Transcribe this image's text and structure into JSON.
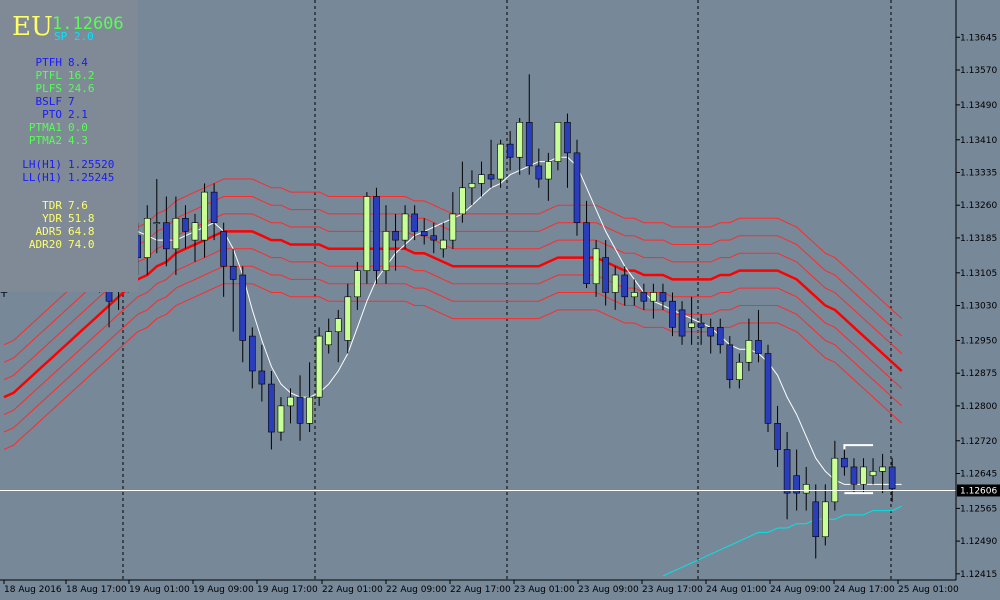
{
  "symbol": "EU",
  "bid": "1.12606",
  "spread": "SP  2.0",
  "info_rows": [
    {
      "label": "PTFH",
      "value": "8.4",
      "color": "#1a1aff"
    },
    {
      "label": "PTFL",
      "value": "16.2",
      "color": "#55ff55"
    },
    {
      "label": "PLFS",
      "value": "24.6",
      "color": "#55ff55"
    },
    {
      "label": "BSLF",
      "value": "7",
      "color": "#1a1aff"
    },
    {
      "label": "PTO",
      "value": "2.1",
      "color": "#1a1aff"
    },
    {
      "label": "PTMA1",
      "value": "0.0",
      "color": "#55ff55"
    },
    {
      "label": "PTMA2",
      "value": "4.3",
      "color": "#55ff55"
    },
    {
      "label": "LH(H1)",
      "value": "1.25520",
      "color": "#1a1aff"
    },
    {
      "label": "LL(H1)",
      "value": "1.25245",
      "color": "#1a1aff"
    },
    {
      "label": "TDR",
      "value": "7.6",
      "color": "#ffff66"
    },
    {
      "label": "YDR",
      "value": "51.8",
      "color": "#ffff66"
    },
    {
      "label": "ADR5",
      "value": "64.8",
      "color": "#ffff66"
    },
    {
      "label": "ADR20",
      "value": "74.0",
      "color": "#ffff66"
    }
  ],
  "colors": {
    "background": "#778899",
    "bull": "#c8ff96",
    "bear": "#2a3dbb",
    "wick": "#000000",
    "band": "#ff2a2a",
    "band_center": "#ff0000",
    "ma_white": "#ffffff",
    "ma_cyan": "#00e5e5",
    "price_line": "#ffffff"
  },
  "chart_data": {
    "type": "candlestick",
    "symbol": "EURUSD",
    "timeframe": "H1",
    "y_range": [
      1.1241,
      1.1368
    ],
    "y_ticks": [
      "1.13645",
      "1.13570",
      "1.13490",
      "1.13410",
      "1.13335",
      "1.13260",
      "1.13185",
      "1.13105",
      "1.13030",
      "1.12950",
      "1.12875",
      "1.12800",
      "1.12720",
      "1.12645",
      "1.12565",
      "1.12490",
      "1.12415"
    ],
    "x_labels": [
      "18 Aug 2016",
      "18 Aug 17:00",
      "19 Aug 01:00",
      "19 Aug 09:00",
      "19 Aug 17:00",
      "22 Aug 01:00",
      "22 Aug 09:00",
      "22 Aug 17:00",
      "23 Aug 01:00",
      "23 Aug 09:00",
      "23 Aug 17:00",
      "24 Aug 01:00",
      "24 Aug 09:00",
      "24 Aug 17:00",
      "25 Aug 01:00"
    ],
    "current_price": "1.12606",
    "candles": [
      {
        "o": 1.1311,
        "h": 1.1312,
        "l": 1.1305,
        "c": 1.1306
      },
      {
        "o": 1.1348,
        "h": 1.135,
        "l": 1.1344,
        "c": 1.1347
      },
      {
        "o": 1.1345,
        "h": 1.1349,
        "l": 1.1337,
        "c": 1.1339
      },
      {
        "o": 1.134,
        "h": 1.1345,
        "l": 1.1336,
        "c": 1.1338
      },
      {
        "o": 1.1338,
        "h": 1.1342,
        "l": 1.1317,
        "c": 1.1321
      },
      {
        "o": 1.1322,
        "h": 1.1331,
        "l": 1.1318,
        "c": 1.1326
      },
      {
        "o": 1.1326,
        "h": 1.1334,
        "l": 1.1322,
        "c": 1.133
      },
      {
        "o": 1.133,
        "h": 1.1338,
        "l": 1.1326,
        "c": 1.1334
      },
      {
        "o": 1.133,
        "h": 1.1342,
        "l": 1.1326,
        "c": 1.1328
      },
      {
        "o": 1.1327,
        "h": 1.1345,
        "l": 1.1323,
        "c": 1.1343
      },
      {
        "o": 1.1343,
        "h": 1.1348,
        "l": 1.1306,
        "c": 1.1308
      },
      {
        "o": 1.1314,
        "h": 1.1321,
        "l": 1.1298,
        "c": 1.1304
      },
      {
        "o": 1.1308,
        "h": 1.1318,
        "l": 1.1302,
        "c": 1.1316
      },
      {
        "o": 1.1316,
        "h": 1.1324,
        "l": 1.1306,
        "c": 1.1319
      },
      {
        "o": 1.1319,
        "h": 1.1322,
        "l": 1.131,
        "c": 1.1314
      },
      {
        "o": 1.1314,
        "h": 1.1326,
        "l": 1.131,
        "c": 1.1323
      },
      {
        "o": 1.1322,
        "h": 1.1332,
        "l": 1.1315,
        "c": 1.1322
      },
      {
        "o": 1.1322,
        "h": 1.1328,
        "l": 1.1312,
        "c": 1.1316
      },
      {
        "o": 1.1316,
        "h": 1.1328,
        "l": 1.131,
        "c": 1.1323
      },
      {
        "o": 1.1323,
        "h": 1.1326,
        "l": 1.1316,
        "c": 1.132
      },
      {
        "o": 1.1318,
        "h": 1.1324,
        "l": 1.1313,
        "c": 1.1322
      },
      {
        "o": 1.1318,
        "h": 1.1331,
        "l": 1.1314,
        "c": 1.1329
      },
      {
        "o": 1.1329,
        "h": 1.1331,
        "l": 1.1318,
        "c": 1.1322
      },
      {
        "o": 1.132,
        "h": 1.1322,
        "l": 1.1305,
        "c": 1.1312
      },
      {
        "o": 1.1312,
        "h": 1.1316,
        "l": 1.1297,
        "c": 1.1309
      },
      {
        "o": 1.131,
        "h": 1.1312,
        "l": 1.129,
        "c": 1.1295
      },
      {
        "o": 1.1296,
        "h": 1.1298,
        "l": 1.1284,
        "c": 1.1288
      },
      {
        "o": 1.1288,
        "h": 1.1294,
        "l": 1.1281,
        "c": 1.1285
      },
      {
        "o": 1.1285,
        "h": 1.1288,
        "l": 1.127,
        "c": 1.1274
      },
      {
        "o": 1.1274,
        "h": 1.1282,
        "l": 1.1272,
        "c": 1.128
      },
      {
        "o": 1.128,
        "h": 1.1284,
        "l": 1.1276,
        "c": 1.1282
      },
      {
        "o": 1.1282,
        "h": 1.1287,
        "l": 1.1272,
        "c": 1.1276
      },
      {
        "o": 1.1276,
        "h": 1.129,
        "l": 1.1274,
        "c": 1.1282
      },
      {
        "o": 1.1282,
        "h": 1.1298,
        "l": 1.128,
        "c": 1.1296
      },
      {
        "o": 1.1294,
        "h": 1.13,
        "l": 1.1292,
        "c": 1.1297
      },
      {
        "o": 1.1297,
        "h": 1.1302,
        "l": 1.129,
        "c": 1.13
      },
      {
        "o": 1.1295,
        "h": 1.1308,
        "l": 1.1292,
        "c": 1.1305
      },
      {
        "o": 1.1305,
        "h": 1.1313,
        "l": 1.1302,
        "c": 1.1311
      },
      {
        "o": 1.1311,
        "h": 1.1329,
        "l": 1.1308,
        "c": 1.1328
      },
      {
        "o": 1.1328,
        "h": 1.133,
        "l": 1.1308,
        "c": 1.1311
      },
      {
        "o": 1.1311,
        "h": 1.1326,
        "l": 1.1308,
        "c": 1.132
      },
      {
        "o": 1.132,
        "h": 1.1324,
        "l": 1.1311,
        "c": 1.1318
      },
      {
        "o": 1.1318,
        "h": 1.1326,
        "l": 1.1316,
        "c": 1.1324
      },
      {
        "o": 1.1324,
        "h": 1.1326,
        "l": 1.1318,
        "c": 1.132
      },
      {
        "o": 1.132,
        "h": 1.1323,
        "l": 1.1317,
        "c": 1.1319
      },
      {
        "o": 1.1319,
        "h": 1.1322,
        "l": 1.1315,
        "c": 1.1318
      },
      {
        "o": 1.1316,
        "h": 1.1322,
        "l": 1.1314,
        "c": 1.1318
      },
      {
        "o": 1.1318,
        "h": 1.1329,
        "l": 1.1316,
        "c": 1.1324
      },
      {
        "o": 1.1324,
        "h": 1.1336,
        "l": 1.1322,
        "c": 1.133
      },
      {
        "o": 1.133,
        "h": 1.1334,
        "l": 1.1326,
        "c": 1.1331
      },
      {
        "o": 1.1331,
        "h": 1.1336,
        "l": 1.1328,
        "c": 1.1333
      },
      {
        "o": 1.1333,
        "h": 1.1341,
        "l": 1.133,
        "c": 1.1332
      },
      {
        "o": 1.1332,
        "h": 1.1341,
        "l": 1.133,
        "c": 1.134
      },
      {
        "o": 1.134,
        "h": 1.1343,
        "l": 1.1334,
        "c": 1.1337
      },
      {
        "o": 1.1337,
        "h": 1.1346,
        "l": 1.1333,
        "c": 1.1345
      },
      {
        "o": 1.1345,
        "h": 1.1356,
        "l": 1.1333,
        "c": 1.1335
      },
      {
        "o": 1.1335,
        "h": 1.1339,
        "l": 1.133,
        "c": 1.1332
      },
      {
        "o": 1.1332,
        "h": 1.1338,
        "l": 1.1327,
        "c": 1.1336
      },
      {
        "o": 1.1336,
        "h": 1.1345,
        "l": 1.1334,
        "c": 1.1345
      },
      {
        "o": 1.1345,
        "h": 1.1347,
        "l": 1.133,
        "c": 1.1338
      },
      {
        "o": 1.1338,
        "h": 1.1341,
        "l": 1.1319,
        "c": 1.1322
      },
      {
        "o": 1.1322,
        "h": 1.1327,
        "l": 1.1307,
        "c": 1.1308
      },
      {
        "o": 1.1308,
        "h": 1.1318,
        "l": 1.1305,
        "c": 1.1316
      },
      {
        "o": 1.1314,
        "h": 1.1318,
        "l": 1.1303,
        "c": 1.1306
      },
      {
        "o": 1.1306,
        "h": 1.1312,
        "l": 1.1302,
        "c": 1.131
      },
      {
        "o": 1.131,
        "h": 1.1312,
        "l": 1.1303,
        "c": 1.1305
      },
      {
        "o": 1.1305,
        "h": 1.1309,
        "l": 1.1303,
        "c": 1.1306
      },
      {
        "o": 1.1306,
        "h": 1.1308,
        "l": 1.1302,
        "c": 1.1304
      },
      {
        "o": 1.1304,
        "h": 1.1308,
        "l": 1.13,
        "c": 1.1306
      },
      {
        "o": 1.1306,
        "h": 1.1308,
        "l": 1.1302,
        "c": 1.1304
      },
      {
        "o": 1.1304,
        "h": 1.1306,
        "l": 1.1296,
        "c": 1.1298
      },
      {
        "o": 1.1302,
        "h": 1.1304,
        "l": 1.1294,
        "c": 1.1296
      },
      {
        "o": 1.1298,
        "h": 1.1305,
        "l": 1.1294,
        "c": 1.1299
      },
      {
        "o": 1.1299,
        "h": 1.1301,
        "l": 1.1294,
        "c": 1.1298
      },
      {
        "o": 1.1298,
        "h": 1.13,
        "l": 1.1292,
        "c": 1.1296
      },
      {
        "o": 1.1298,
        "h": 1.13,
        "l": 1.1292,
        "c": 1.1294
      },
      {
        "o": 1.1294,
        "h": 1.1296,
        "l": 1.1284,
        "c": 1.1286
      },
      {
        "o": 1.1286,
        "h": 1.1292,
        "l": 1.1284,
        "c": 1.129
      },
      {
        "o": 1.129,
        "h": 1.13,
        "l": 1.1288,
        "c": 1.1295
      },
      {
        "o": 1.1295,
        "h": 1.1302,
        "l": 1.129,
        "c": 1.1292
      },
      {
        "o": 1.1292,
        "h": 1.1294,
        "l": 1.1274,
        "c": 1.1276
      },
      {
        "o": 1.1276,
        "h": 1.128,
        "l": 1.1266,
        "c": 1.127
      },
      {
        "o": 1.127,
        "h": 1.1274,
        "l": 1.1254,
        "c": 1.126
      },
      {
        "o": 1.1264,
        "h": 1.127,
        "l": 1.1256,
        "c": 1.126
      },
      {
        "o": 1.126,
        "h": 1.1266,
        "l": 1.1256,
        "c": 1.1262
      },
      {
        "o": 1.1258,
        "h": 1.1262,
        "l": 1.1245,
        "c": 1.125
      },
      {
        "o": 1.125,
        "h": 1.1262,
        "l": 1.1248,
        "c": 1.1258
      },
      {
        "o": 1.1258,
        "h": 1.1272,
        "l": 1.1256,
        "c": 1.1268
      },
      {
        "o": 1.1268,
        "h": 1.127,
        "l": 1.1264,
        "c": 1.1266
      },
      {
        "o": 1.1266,
        "h": 1.1268,
        "l": 1.126,
        "c": 1.1262
      },
      {
        "o": 1.1262,
        "h": 1.1268,
        "l": 1.126,
        "c": 1.1266
      },
      {
        "o": 1.1264,
        "h": 1.1268,
        "l": 1.1262,
        "c": 1.1265
      },
      {
        "o": 1.1265,
        "h": 1.1269,
        "l": 1.126,
        "c": 1.1266
      },
      {
        "o": 1.1266,
        "h": 1.1268,
        "l": 1.1258,
        "c": 1.1261
      }
    ],
    "white_ma": [
      1.1341,
      1.1345,
      1.1346,
      1.1346,
      1.1345,
      1.1343,
      1.1342,
      1.134,
      1.1337,
      1.1334,
      1.1331,
      1.1328,
      1.1325,
      1.1322,
      1.132,
      1.1319,
      1.1318,
      1.1318,
      1.1318,
      1.1319,
      1.132,
      1.1321,
      1.1322,
      1.132,
      1.1316,
      1.131,
      1.1302,
      1.1295,
      1.1289,
      1.1285,
      1.1283,
      1.1282,
      1.1282,
      1.1283,
      1.1285,
      1.1288,
      1.1292,
      1.1298,
      1.1304,
      1.1309,
      1.1312,
      1.1315,
      1.1317,
      1.1319,
      1.132,
      1.1321,
      1.1322,
      1.1323,
      1.1324,
      1.1326,
      1.1328,
      1.133,
      1.1331,
      1.1333,
      1.1334,
      1.1335,
      1.1336,
      1.1336,
      1.1337,
      1.1337,
      1.1335,
      1.133,
      1.1325,
      1.132,
      1.1316,
      1.1312,
      1.1309,
      1.1306,
      1.1304,
      1.1303,
      1.1302,
      1.1301,
      1.13,
      1.1299,
      1.1298,
      1.1296,
      1.1294,
      1.1293,
      1.1293,
      1.1292,
      1.129,
      1.1287,
      1.1282,
      1.1278,
      1.1273,
      1.1268,
      1.1265,
      1.1263,
      1.1262,
      1.1262,
      1.1262,
      1.1262,
      1.1262,
      1.1262,
      1.1262
    ],
    "cyan_ma": {
      "start_index": 69,
      "values": [
        1.1241,
        1.1242,
        1.1243,
        1.1244,
        1.1245,
        1.1246,
        1.1247,
        1.1248,
        1.1249,
        1.125,
        1.1251,
        1.1251,
        1.1252,
        1.1252,
        1.1253,
        1.1253,
        1.1254,
        1.1254,
        1.1254,
        1.1255,
        1.1255,
        1.1255,
        1.1256,
        1.1256,
        1.1256,
        1.1257
      ]
    },
    "band_center": [
      1.1282,
      1.1283,
      1.1285,
      1.1287,
      1.1289,
      1.1291,
      1.1293,
      1.1295,
      1.1297,
      1.1299,
      1.1301,
      1.1303,
      1.1305,
      1.1307,
      1.1309,
      1.131,
      1.1312,
      1.1313,
      1.1315,
      1.1316,
      1.1317,
      1.1318,
      1.1319,
      1.132,
      1.132,
      1.132,
      1.132,
      1.1319,
      1.1318,
      1.1318,
      1.1317,
      1.1317,
      1.1317,
      1.1317,
      1.1316,
      1.1316,
      1.1316,
      1.1316,
      1.1316,
      1.1316,
      1.1316,
      1.1316,
      1.1316,
      1.1315,
      1.1315,
      1.1314,
      1.1313,
      1.1312,
      1.1312,
      1.1312,
      1.1312,
      1.1312,
      1.1312,
      1.1312,
      1.1312,
      1.1312,
      1.1312,
      1.1313,
      1.1314,
      1.1314,
      1.1314,
      1.1314,
      1.1314,
      1.1313,
      1.1312,
      1.1311,
      1.1311,
      1.131,
      1.131,
      1.131,
      1.1309,
      1.1309,
      1.1309,
      1.1309,
      1.1309,
      1.131,
      1.131,
      1.1311,
      1.1311,
      1.1311,
      1.1311,
      1.1311,
      1.131,
      1.1309,
      1.1307,
      1.1305,
      1.1303,
      1.1302,
      1.13,
      1.1298,
      1.1296,
      1.1294,
      1.1292,
      1.129,
      1.1288
    ],
    "band_offsets": [
      -0.0012,
      -0.0008,
      -0.0004,
      0.0004,
      0.0008,
      0.0012
    ]
  }
}
